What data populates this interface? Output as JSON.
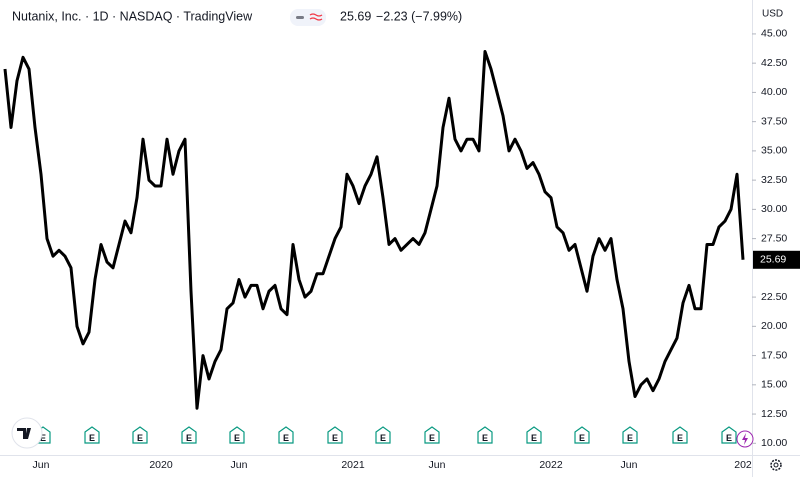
{
  "chart_data": {
    "type": "line",
    "title": "Nutanix, Inc. · 1D · NASDAQ · TradingView",
    "last": 25.69,
    "change": "−2.23 (−7.99%)",
    "currency": "USD",
    "event_label": "E",
    "color": "#000000",
    "categories": [
      null,
      null,
      null,
      null,
      null,
      null,
      "Jun",
      null,
      null,
      null,
      null,
      null,
      null,
      null,
      null,
      null,
      null,
      null,
      null,
      null,
      null,
      null,
      null,
      null,
      null,
      null,
      "2020",
      null,
      null,
      null,
      null,
      null,
      null,
      null,
      null,
      null,
      null,
      null,
      null,
      "Jun",
      null,
      null,
      null,
      null,
      null,
      null,
      null,
      null,
      null,
      null,
      null,
      null,
      null,
      null,
      null,
      null,
      null,
      null,
      "2021",
      null,
      null,
      null,
      null,
      null,
      null,
      null,
      null,
      null,
      null,
      null,
      null,
      null,
      "Jun",
      null,
      null,
      null,
      null,
      null,
      null,
      null,
      null,
      null,
      null,
      null,
      null,
      null,
      null,
      null,
      null,
      null,
      null,
      "2022",
      null,
      null,
      null,
      null,
      null,
      null,
      null,
      null,
      null,
      null,
      null,
      null,
      "Jun",
      null,
      null,
      null,
      null,
      null,
      null,
      null,
      null,
      null,
      null,
      null,
      null,
      null,
      null,
      null,
      null,
      null,
      null,
      "202"
    ],
    "values": [
      42,
      37,
      41,
      43,
      42,
      37,
      33,
      27.5,
      26,
      26.5,
      26,
      25,
      20,
      18.5,
      19.5,
      24,
      27,
      25.5,
      25,
      27,
      29,
      28,
      31,
      36,
      32.5,
      32,
      32,
      36,
      33,
      35,
      36,
      23,
      13,
      17.5,
      15.5,
      17,
      18,
      21.5,
      22,
      24,
      22.5,
      23.5,
      23.5,
      21.5,
      23,
      23.5,
      21.5,
      21,
      27,
      24,
      22.5,
      23,
      24.5,
      24.5,
      26,
      27.5,
      28.5,
      33,
      32,
      30.5,
      32,
      33,
      34.5,
      31,
      27,
      27.5,
      26.5,
      27,
      27.5,
      27,
      28,
      30,
      32,
      37,
      39.5,
      36,
      35,
      36,
      36,
      35,
      43.5,
      42,
      40,
      38,
      35,
      36,
      35,
      33.5,
      34,
      33,
      31.5,
      31,
      28.5,
      28,
      26.5,
      27,
      25,
      23,
      26,
      27.5,
      26.5,
      27.5,
      24,
      21.5,
      17,
      14,
      15,
      15.5,
      14.5,
      15.5,
      17,
      18,
      19,
      22,
      23.5,
      21.5,
      21.5,
      27,
      27,
      28.5,
      29,
      30,
      33,
      25.69
    ],
    "ylim": [
      9,
      47.9
    ],
    "yticks": [
      {
        "value": 10,
        "label": "10.00"
      },
      {
        "value": 12.5,
        "label": "12.50"
      },
      {
        "value": 15,
        "label": "15.00"
      },
      {
        "value": 17.5,
        "label": "17.50"
      },
      {
        "value": 20,
        "label": "20.00"
      },
      {
        "value": 22.5,
        "label": "22.50"
      },
      {
        "value": 27.5,
        "label": "27.50"
      },
      {
        "value": 30,
        "label": "30.00"
      },
      {
        "value": 32.5,
        "label": "32.50"
      },
      {
        "value": 35,
        "label": "35.00"
      },
      {
        "value": 37.5,
        "label": "37.50"
      },
      {
        "value": 40,
        "label": "40.00"
      },
      {
        "value": 42.5,
        "label": "42.50"
      },
      {
        "value": 45,
        "label": "45.00"
      }
    ],
    "grid": false
  }
}
